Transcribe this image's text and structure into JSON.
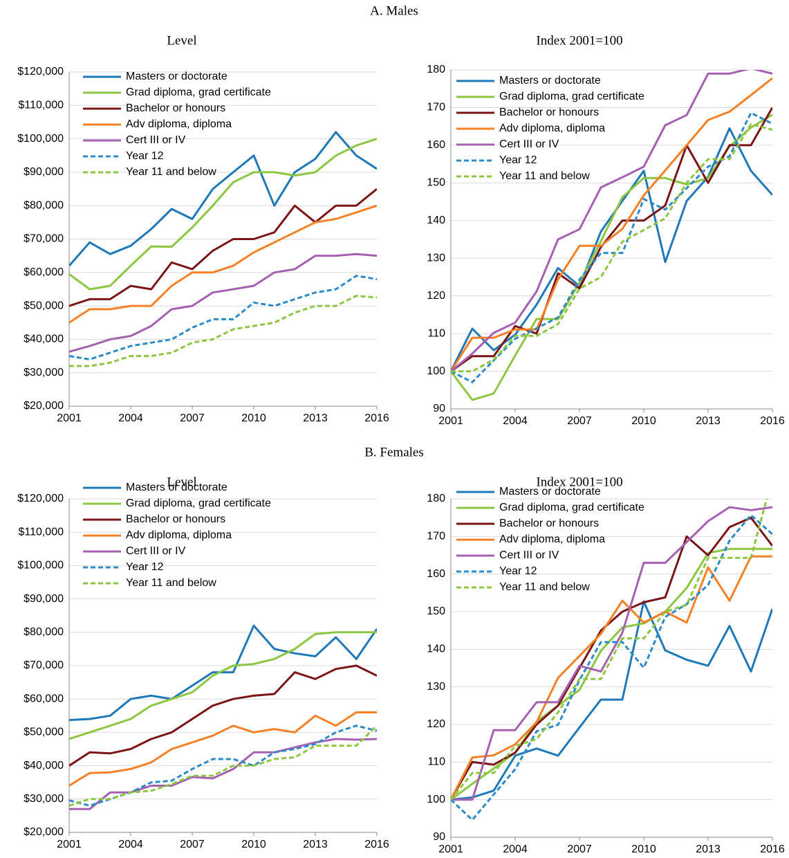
{
  "sections": [
    {
      "title": "A. Males"
    },
    {
      "title": "B. Females"
    }
  ],
  "chart_data": [
    {
      "type": "line",
      "title": "Level",
      "x": [
        2001,
        2002,
        2003,
        2004,
        2005,
        2006,
        2007,
        2008,
        2009,
        2010,
        2011,
        2012,
        2013,
        2014,
        2015,
        2016
      ],
      "xlim": [
        2001,
        2016
      ],
      "xticks": [
        2001,
        2004,
        2007,
        2010,
        2013,
        2016
      ],
      "ylim": [
        20000,
        120000
      ],
      "yticks": [
        {
          "value": 20000,
          "label": "$20,000"
        },
        {
          "value": 30000,
          "label": "$30,000"
        },
        {
          "value": 40000,
          "label": "$40,000"
        },
        {
          "value": 50000,
          "label": "$50,000"
        },
        {
          "value": 60000,
          "label": "$60,000"
        },
        {
          "value": 70000,
          "label": "$70,000"
        },
        {
          "value": 80000,
          "label": "$80,000"
        },
        {
          "value": 90000,
          "label": "$90,000"
        },
        {
          "value": 100000,
          "label": "$100,000"
        },
        {
          "value": 110000,
          "label": "$110,000"
        },
        {
          "value": 120000,
          "label": "$120,000"
        }
      ],
      "grid": true,
      "legend": "top-left",
      "series": [
        {
          "name": "Masters or doctorate",
          "color": "#1f78b8",
          "values": [
            62000,
            69000,
            65500,
            68000,
            73000,
            79000,
            76000,
            85000,
            90000,
            95000,
            80000,
            90000,
            94000,
            102000,
            95000,
            91000
          ]
        },
        {
          "name": "Grad diploma, grad certificate",
          "color": "#8dc641",
          "values": [
            59500,
            55000,
            56000,
            62000,
            67800,
            67700,
            73500,
            80000,
            87000,
            90000,
            90000,
            89000,
            90000,
            95000,
            98000,
            100000
          ]
        },
        {
          "name": "Bachelor or honours",
          "color": "#7b1517",
          "values": [
            50000,
            52000,
            52000,
            56000,
            55000,
            63000,
            61000,
            66500,
            70000,
            70000,
            72000,
            80000,
            75000,
            80000,
            80000,
            85000
          ]
        },
        {
          "name": "Adv diploma, diploma",
          "color": "#f58025",
          "values": [
            45000,
            49000,
            49000,
            50000,
            50000,
            56000,
            60000,
            60000,
            62000,
            66000,
            69000,
            72000,
            75000,
            76000,
            78000,
            80000
          ]
        },
        {
          "name": "Cert III or IV",
          "color": "#a660b2",
          "values": [
            36300,
            38000,
            40000,
            41000,
            44000,
            49000,
            50000,
            54000,
            55000,
            56000,
            60000,
            61000,
            65000,
            65000,
            65500,
            65000
          ]
        },
        {
          "name": "Year 12",
          "color": "#2b8bc9",
          "dashed": true,
          "values": [
            35000,
            34000,
            36000,
            38000,
            39000,
            40000,
            43500,
            46000,
            46000,
            51000,
            50000,
            52000,
            54000,
            55000,
            59000,
            58000
          ]
        },
        {
          "name": "Year 11 and below",
          "color": "#8dc641",
          "dashed": true,
          "values": [
            32000,
            32000,
            33000,
            35000,
            35000,
            36000,
            39000,
            40000,
            43000,
            44000,
            45000,
            48000,
            50000,
            50000,
            53000,
            52500
          ]
        }
      ]
    },
    {
      "type": "line",
      "title": "Index 2001=100",
      "x": [
        2001,
        2002,
        2003,
        2004,
        2005,
        2006,
        2007,
        2008,
        2009,
        2010,
        2011,
        2012,
        2013,
        2014,
        2015,
        2016
      ],
      "xlim": [
        2001,
        2016
      ],
      "xticks": [
        2001,
        2004,
        2007,
        2010,
        2013,
        2016
      ],
      "ylim": [
        90,
        180
      ],
      "yticks": [
        90,
        100,
        110,
        120,
        130,
        140,
        150,
        160,
        170,
        180
      ],
      "grid": true,
      "legend": "top-left",
      "series": [
        {
          "name": "Masters or doctorate",
          "color": "#1f78b8",
          "values": [
            100,
            111.3,
            105.6,
            109.7,
            117.7,
            127.4,
            122.6,
            137.1,
            145.2,
            153.2,
            129,
            145.2,
            151.6,
            164.5,
            153.2,
            146.8
          ]
        },
        {
          "name": "Grad diploma, grad certificate",
          "color": "#8dc641",
          "values": [
            100,
            92.4,
            94.1,
            104.2,
            113.9,
            113.8,
            123.5,
            134.5,
            146.2,
            151.3,
            151.3,
            149.6,
            151.3,
            159.7,
            164.7,
            168.1
          ]
        },
        {
          "name": "Bachelor or honours",
          "color": "#7b1517",
          "values": [
            100,
            104,
            104,
            112,
            110,
            126,
            122,
            133,
            140,
            140,
            144,
            160,
            150,
            160,
            160,
            170
          ]
        },
        {
          "name": "Adv diploma, diploma",
          "color": "#f58025",
          "values": [
            100,
            108.9,
            108.9,
            111.1,
            111.1,
            124.4,
            133.3,
            133.3,
            137.8,
            146.7,
            153.3,
            160,
            166.7,
            168.9,
            173.3,
            177.8
          ]
        },
        {
          "name": "Cert III or IV",
          "color": "#a660b2",
          "values": [
            100,
            104.7,
            110.2,
            112.9,
            121.2,
            135,
            137.7,
            148.8,
            151.5,
            154.3,
            165.3,
            168,
            179,
            179,
            180.4,
            179
          ]
        },
        {
          "name": "Year 12",
          "color": "#2b8bc9",
          "dashed": true,
          "values": [
            100,
            97.1,
            102.9,
            108.6,
            111.4,
            114.3,
            124.3,
            131.4,
            131.4,
            145.7,
            142.9,
            148.6,
            154.3,
            157.1,
            168.6,
            165.7
          ]
        },
        {
          "name": "Year 11 and below",
          "color": "#8dc641",
          "dashed": true,
          "values": [
            100,
            100,
            103.1,
            109.4,
            109.4,
            112.5,
            121.9,
            125,
            134.4,
            137.5,
            140.6,
            150,
            156.3,
            156.3,
            165.6,
            164.1
          ]
        }
      ]
    },
    {
      "type": "line",
      "title": "Level",
      "x": [
        2001,
        2002,
        2003,
        2004,
        2005,
        2006,
        2007,
        2008,
        2009,
        2010,
        2011,
        2012,
        2013,
        2014,
        2015,
        2016
      ],
      "xlim": [
        2001,
        2016
      ],
      "xticks": [
        2001,
        2004,
        2007,
        2010,
        2013,
        2016
      ],
      "ylim": [
        20000,
        120000
      ],
      "yticks": [
        {
          "value": 20000,
          "label": "$20,000"
        },
        {
          "value": 30000,
          "label": "$30,000"
        },
        {
          "value": 40000,
          "label": "$40,000"
        },
        {
          "value": 50000,
          "label": "$50,000"
        },
        {
          "value": 60000,
          "label": "$60,000"
        },
        {
          "value": 70000,
          "label": "$70,000"
        },
        {
          "value": 80000,
          "label": "$80,000"
        },
        {
          "value": 90000,
          "label": "$90,000"
        },
        {
          "value": 100000,
          "label": "$100,000"
        },
        {
          "value": 110000,
          "label": "$110,000"
        },
        {
          "value": 120000,
          "label": "$120,000"
        }
      ],
      "grid": true,
      "legend": "top-left",
      "series": [
        {
          "name": "Masters or doctorate",
          "color": "#1f78b8",
          "values": [
            53700,
            54000,
            55000,
            60000,
            61000,
            60000,
            64000,
            68000,
            68000,
            82000,
            75000,
            73700,
            72800,
            78500,
            72000,
            81000
          ]
        },
        {
          "name": "Grad diploma, grad certificate",
          "color": "#8dc641",
          "values": [
            48000,
            50000,
            52000,
            54000,
            58000,
            60000,
            62000,
            67000,
            70000,
            70500,
            72000,
            75000,
            79500,
            80000,
            80000,
            80000
          ]
        },
        {
          "name": "Bachelor or honours",
          "color": "#7b1517",
          "values": [
            40000,
            44000,
            43700,
            45000,
            48000,
            50000,
            54000,
            58000,
            60000,
            61000,
            61500,
            68000,
            66000,
            69000,
            70000,
            67000
          ]
        },
        {
          "name": "Adv diploma, diploma",
          "color": "#f58025",
          "values": [
            34000,
            37800,
            38000,
            39000,
            41000,
            45000,
            47000,
            49000,
            52000,
            50000,
            51000,
            50000,
            55000,
            52000,
            56000,
            56000
          ]
        },
        {
          "name": "Cert III or IV",
          "color": "#a660b2",
          "values": [
            27000,
            27000,
            32000,
            32000,
            34000,
            34000,
            36600,
            36200,
            39000,
            44000,
            44000,
            45500,
            47000,
            48000,
            47800,
            48000
          ]
        },
        {
          "name": "Year 12",
          "color": "#2b8bc9",
          "dashed": true,
          "values": [
            29600,
            28000,
            30000,
            32000,
            35000,
            35500,
            39000,
            42000,
            42000,
            40000,
            44000,
            45000,
            46500,
            50000,
            52000,
            50500
          ]
        },
        {
          "name": "Year 11 and below",
          "color": "#8dc641",
          "dashed": true,
          "values": [
            28000,
            30000,
            30000,
            32000,
            32500,
            34500,
            37000,
            37000,
            40000,
            40000,
            42000,
            42500,
            46000,
            46000,
            46000,
            52000
          ]
        }
      ]
    },
    {
      "type": "line",
      "title": "Index 2001=100",
      "x": [
        2001,
        2002,
        2003,
        2004,
        2005,
        2006,
        2007,
        2008,
        2009,
        2010,
        2011,
        2012,
        2013,
        2014,
        2015,
        2016
      ],
      "xlim": [
        2001,
        2016
      ],
      "xticks": [
        2001,
        2004,
        2007,
        2010,
        2013,
        2016
      ],
      "ylim": [
        90,
        180
      ],
      "yticks": [
        90,
        100,
        110,
        120,
        130,
        140,
        150,
        160,
        170,
        180
      ],
      "grid": true,
      "legend": "top-left",
      "series": [
        {
          "name": "Masters or doctorate",
          "color": "#1f78b8",
          "values": [
            100,
            100.6,
            102.4,
            111.7,
            113.6,
            111.7,
            119.2,
            126.6,
            126.6,
            152.7,
            139.7,
            137.2,
            135.6,
            146.2,
            134.1,
            150.8
          ]
        },
        {
          "name": "Grad diploma, grad certificate",
          "color": "#8dc641",
          "values": [
            100,
            104.2,
            108.3,
            112.5,
            120.8,
            125,
            129.2,
            139.6,
            145.8,
            146.9,
            150,
            156.3,
            165.6,
            166.7,
            166.7,
            166.7
          ]
        },
        {
          "name": "Bachelor or honours",
          "color": "#7b1517",
          "values": [
            100,
            110,
            109.3,
            112.5,
            120,
            125,
            135,
            145,
            150,
            152.5,
            153.8,
            170,
            165,
            172.5,
            175,
            167.5
          ]
        },
        {
          "name": "Adv diploma, diploma",
          "color": "#f58025",
          "values": [
            100,
            111.2,
            111.8,
            114.7,
            120.6,
            132.4,
            138.2,
            144.1,
            152.9,
            147.1,
            150,
            147.1,
            161.8,
            152.9,
            164.7,
            164.7
          ]
        },
        {
          "name": "Cert III or IV",
          "color": "#a660b2",
          "values": [
            100,
            100,
            118.5,
            118.5,
            125.9,
            125.9,
            135.6,
            134.1,
            144.4,
            163,
            163,
            168.5,
            174.1,
            177.8,
            177,
            177.8
          ]
        },
        {
          "name": "Year 12",
          "color": "#2b8bc9",
          "dashed": true,
          "values": [
            100,
            94.6,
            101.4,
            108.1,
            118.2,
            119.9,
            131.8,
            141.9,
            141.9,
            135.1,
            148.6,
            152,
            157.1,
            168.9,
            175.7,
            170.6
          ]
        },
        {
          "name": "Year 11 and below",
          "color": "#8dc641",
          "dashed": true,
          "values": [
            100,
            107.1,
            107.1,
            114.3,
            116.1,
            123.2,
            132.1,
            132.1,
            142.9,
            142.9,
            150,
            151.8,
            164.3,
            164.3,
            164.3,
            185.7
          ]
        }
      ]
    }
  ]
}
